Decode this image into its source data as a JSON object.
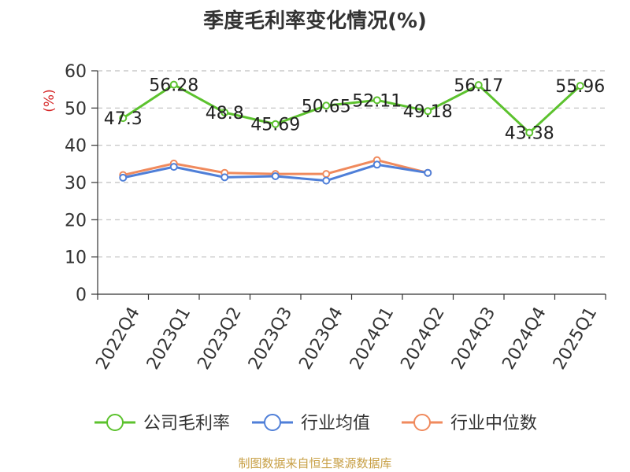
{
  "chart_data": {
    "type": "line",
    "title": "季度毛利率变化情况(%)",
    "ylabel": "(%)",
    "categories": [
      "2022Q4",
      "2023Q1",
      "2023Q2",
      "2023Q3",
      "2023Q4",
      "2024Q1",
      "2024Q2",
      "2024Q3",
      "2024Q4",
      "2025Q1"
    ],
    "ylim": [
      0,
      60
    ],
    "yticks": [
      0,
      10,
      20,
      30,
      40,
      50,
      60
    ],
    "grid": true,
    "legend_position": "bottom",
    "series": [
      {
        "name": "公司毛利率",
        "color": "#5cc22e",
        "labels": true,
        "values": [
          47.3,
          56.28,
          48.8,
          45.69,
          50.65,
          52.11,
          49.18,
          56.17,
          43.38,
          55.96
        ]
      },
      {
        "name": "行业均值",
        "color": "#4f7fd8",
        "labels": false,
        "values": [
          31.3,
          34.2,
          31.4,
          31.7,
          30.5,
          34.8,
          32.6,
          null,
          null,
          null
        ]
      },
      {
        "name": "行业中位数",
        "color": "#f08a5d",
        "labels": false,
        "values": [
          32.0,
          35.1,
          32.6,
          32.3,
          32.3,
          36.0,
          32.6,
          null,
          null,
          null
        ]
      }
    ]
  },
  "source": "制图数据来自恒生聚源数据库"
}
